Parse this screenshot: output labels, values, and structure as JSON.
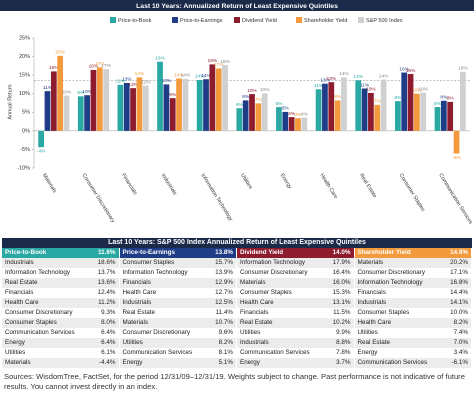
{
  "chart_data": {
    "type": "bar",
    "title": "Last 10 Years: Annualized Return of Least Expensive Quintiles",
    "y_label": "Annual Return",
    "categories": [
      "Materials",
      "Consumer Discretionary",
      "Financials",
      "Industrials",
      "Information Technology",
      "Utilities",
      "Energy",
      "Health Care",
      "Real Estate",
      "Consumer Staples",
      "Communication Services"
    ],
    "series": [
      {
        "name": "Price-to-Book",
        "color": "#2aa9a4",
        "values": [
          -4.4,
          9.3,
          12.4,
          18.6,
          13.7,
          6.1,
          6.4,
          11.2,
          13.6,
          8.0,
          6.4
        ],
        "value_labels": [
          "-4%",
          "9%",
          "12%",
          "19%",
          "14%",
          "6%",
          "6%",
          "11%",
          "14%",
          "8%",
          "6%"
        ]
      },
      {
        "name": "Price-to-Earnings",
        "color": "#1f3d86",
        "values": [
          10.7,
          9.6,
          12.9,
          12.5,
          13.9,
          8.2,
          5.1,
          12.7,
          11.4,
          15.7,
          8.1
        ],
        "value_labels": [
          "11%",
          "10%",
          "13%",
          "13%",
          "14%",
          "8%",
          "5%",
          "13%",
          "11%",
          "16%",
          "8%"
        ]
      },
      {
        "name": "Dividend Yield",
        "color": "#8c1c2e",
        "values": [
          16.0,
          16.4,
          11.5,
          8.8,
          17.9,
          9.9,
          3.7,
          13.1,
          10.2,
          15.3,
          7.8
        ],
        "value_labels": [
          "16%",
          "16%",
          "12%",
          "9%",
          "18%",
          "10%",
          "4%",
          "13%",
          "10%",
          "15%",
          "8%"
        ]
      },
      {
        "name": "Shareholder Yield",
        "color": "#f39a3c",
        "values": [
          20.2,
          17.1,
          14.4,
          14.1,
          16.8,
          7.4,
          3.4,
          8.2,
          7.0,
          10.0,
          -6.1
        ],
        "value_labels": [
          "20%",
          "17%",
          "14%",
          "14%",
          "17%",
          "7%",
          "3%",
          "8%",
          "7%",
          "10%",
          "-6%"
        ]
      },
      {
        "name": "S&P 500 Index",
        "color": "#cfd0d2",
        "values": [
          9.5,
          16.6,
          12.2,
          14.0,
          17.7,
          10.1,
          3.6,
          14.4,
          13.8,
          10.3,
          15.9
        ],
        "value_labels": [
          "10%",
          "17%",
          "12%",
          "14%",
          "18%",
          "10%",
          "4%",
          "14%",
          "14%",
          "10%",
          "16%"
        ]
      }
    ],
    "reference_line": 13.6,
    "ylim": [
      -10,
      25
    ],
    "yticks": [
      {
        "value": -10,
        "label": "-10%"
      },
      {
        "value": -5,
        "label": "-5%"
      },
      {
        "value": 0,
        "label": "0%"
      },
      {
        "value": 5,
        "label": "5%"
      },
      {
        "value": 10,
        "label": "10%"
      },
      {
        "value": 15,
        "label": "15%"
      },
      {
        "value": 20,
        "label": "20%"
      },
      {
        "value": 25,
        "label": "25%"
      }
    ],
    "grid": false
  },
  "table": {
    "title": "Last 10 Years: S&P 500 Index Annualized Return of Least Expensive Quintiles",
    "columns": [
      {
        "name": "Price-to-Book",
        "total": "11.6%",
        "rows": [
          [
            "Industrials",
            "18.6%"
          ],
          [
            "Information Technology",
            "13.7%"
          ],
          [
            "Real Estate",
            "13.6%"
          ],
          [
            "Financials",
            "12.4%"
          ],
          [
            "Health Care",
            "11.2%"
          ],
          [
            "Consumer Discretionary",
            "9.3%"
          ],
          [
            "Consumer Staples",
            "8.0%"
          ],
          [
            "Communication Services",
            "6.4%"
          ],
          [
            "Energy",
            "6.4%"
          ],
          [
            "Utilities",
            "6.1%"
          ],
          [
            "Materials",
            "-4.4%"
          ]
        ]
      },
      {
        "name": "Price-to-Earnings",
        "total": "13.8%",
        "rows": [
          [
            "Consumer Staples",
            "15.7%"
          ],
          [
            "Information Technology",
            "13.9%"
          ],
          [
            "Financials",
            "12.9%"
          ],
          [
            "Health Care",
            "12.7%"
          ],
          [
            "Industrials",
            "12.5%"
          ],
          [
            "Real Estate",
            "11.4%"
          ],
          [
            "Materials",
            "10.7%"
          ],
          [
            "Consumer Discretionary",
            "9.6%"
          ],
          [
            "Utilities",
            "8.2%"
          ],
          [
            "Communication Services",
            "8.1%"
          ],
          [
            "Energy",
            "5.1%"
          ]
        ]
      },
      {
        "name": "Dividend Yield",
        "total": "14.0%",
        "rows": [
          [
            "Information Technology",
            "17.9%"
          ],
          [
            "Consumer Discretionary",
            "16.4%"
          ],
          [
            "Materials",
            "16.0%"
          ],
          [
            "Consumer Staples",
            "15.3%"
          ],
          [
            "Health Care",
            "13.1%"
          ],
          [
            "Financials",
            "11.5%"
          ],
          [
            "Real Estate",
            "10.2%"
          ],
          [
            "Utilities",
            "9.9%"
          ],
          [
            "Industrials",
            "8.8%"
          ],
          [
            "Communication Services",
            "7.8%"
          ],
          [
            "Energy",
            "3.7%"
          ]
        ]
      },
      {
        "name": "Shareholder Yield",
        "total": "14.9%",
        "rows": [
          [
            "Materials",
            "20.2%"
          ],
          [
            "Consumer Discretionary",
            "17.1%"
          ],
          [
            "Information Technology",
            "16.8%"
          ],
          [
            "Financials",
            "14.4%"
          ],
          [
            "Industrials",
            "14.1%"
          ],
          [
            "Consumer Staples",
            "10.0%"
          ],
          [
            "Health Care",
            "8.2%"
          ],
          [
            "Utilities",
            "7.4%"
          ],
          [
            "Real Estate",
            "7.0%"
          ],
          [
            "Energy",
            "3.4%"
          ],
          [
            "Communication Services",
            "-6.1%"
          ]
        ]
      }
    ]
  },
  "footer": "Sources: WisdomTree, FactSet, for the period 12/31/09–12/31/19. Weights subject to change. Past performance is not indicative of future results. You cannot invest directly in an index."
}
